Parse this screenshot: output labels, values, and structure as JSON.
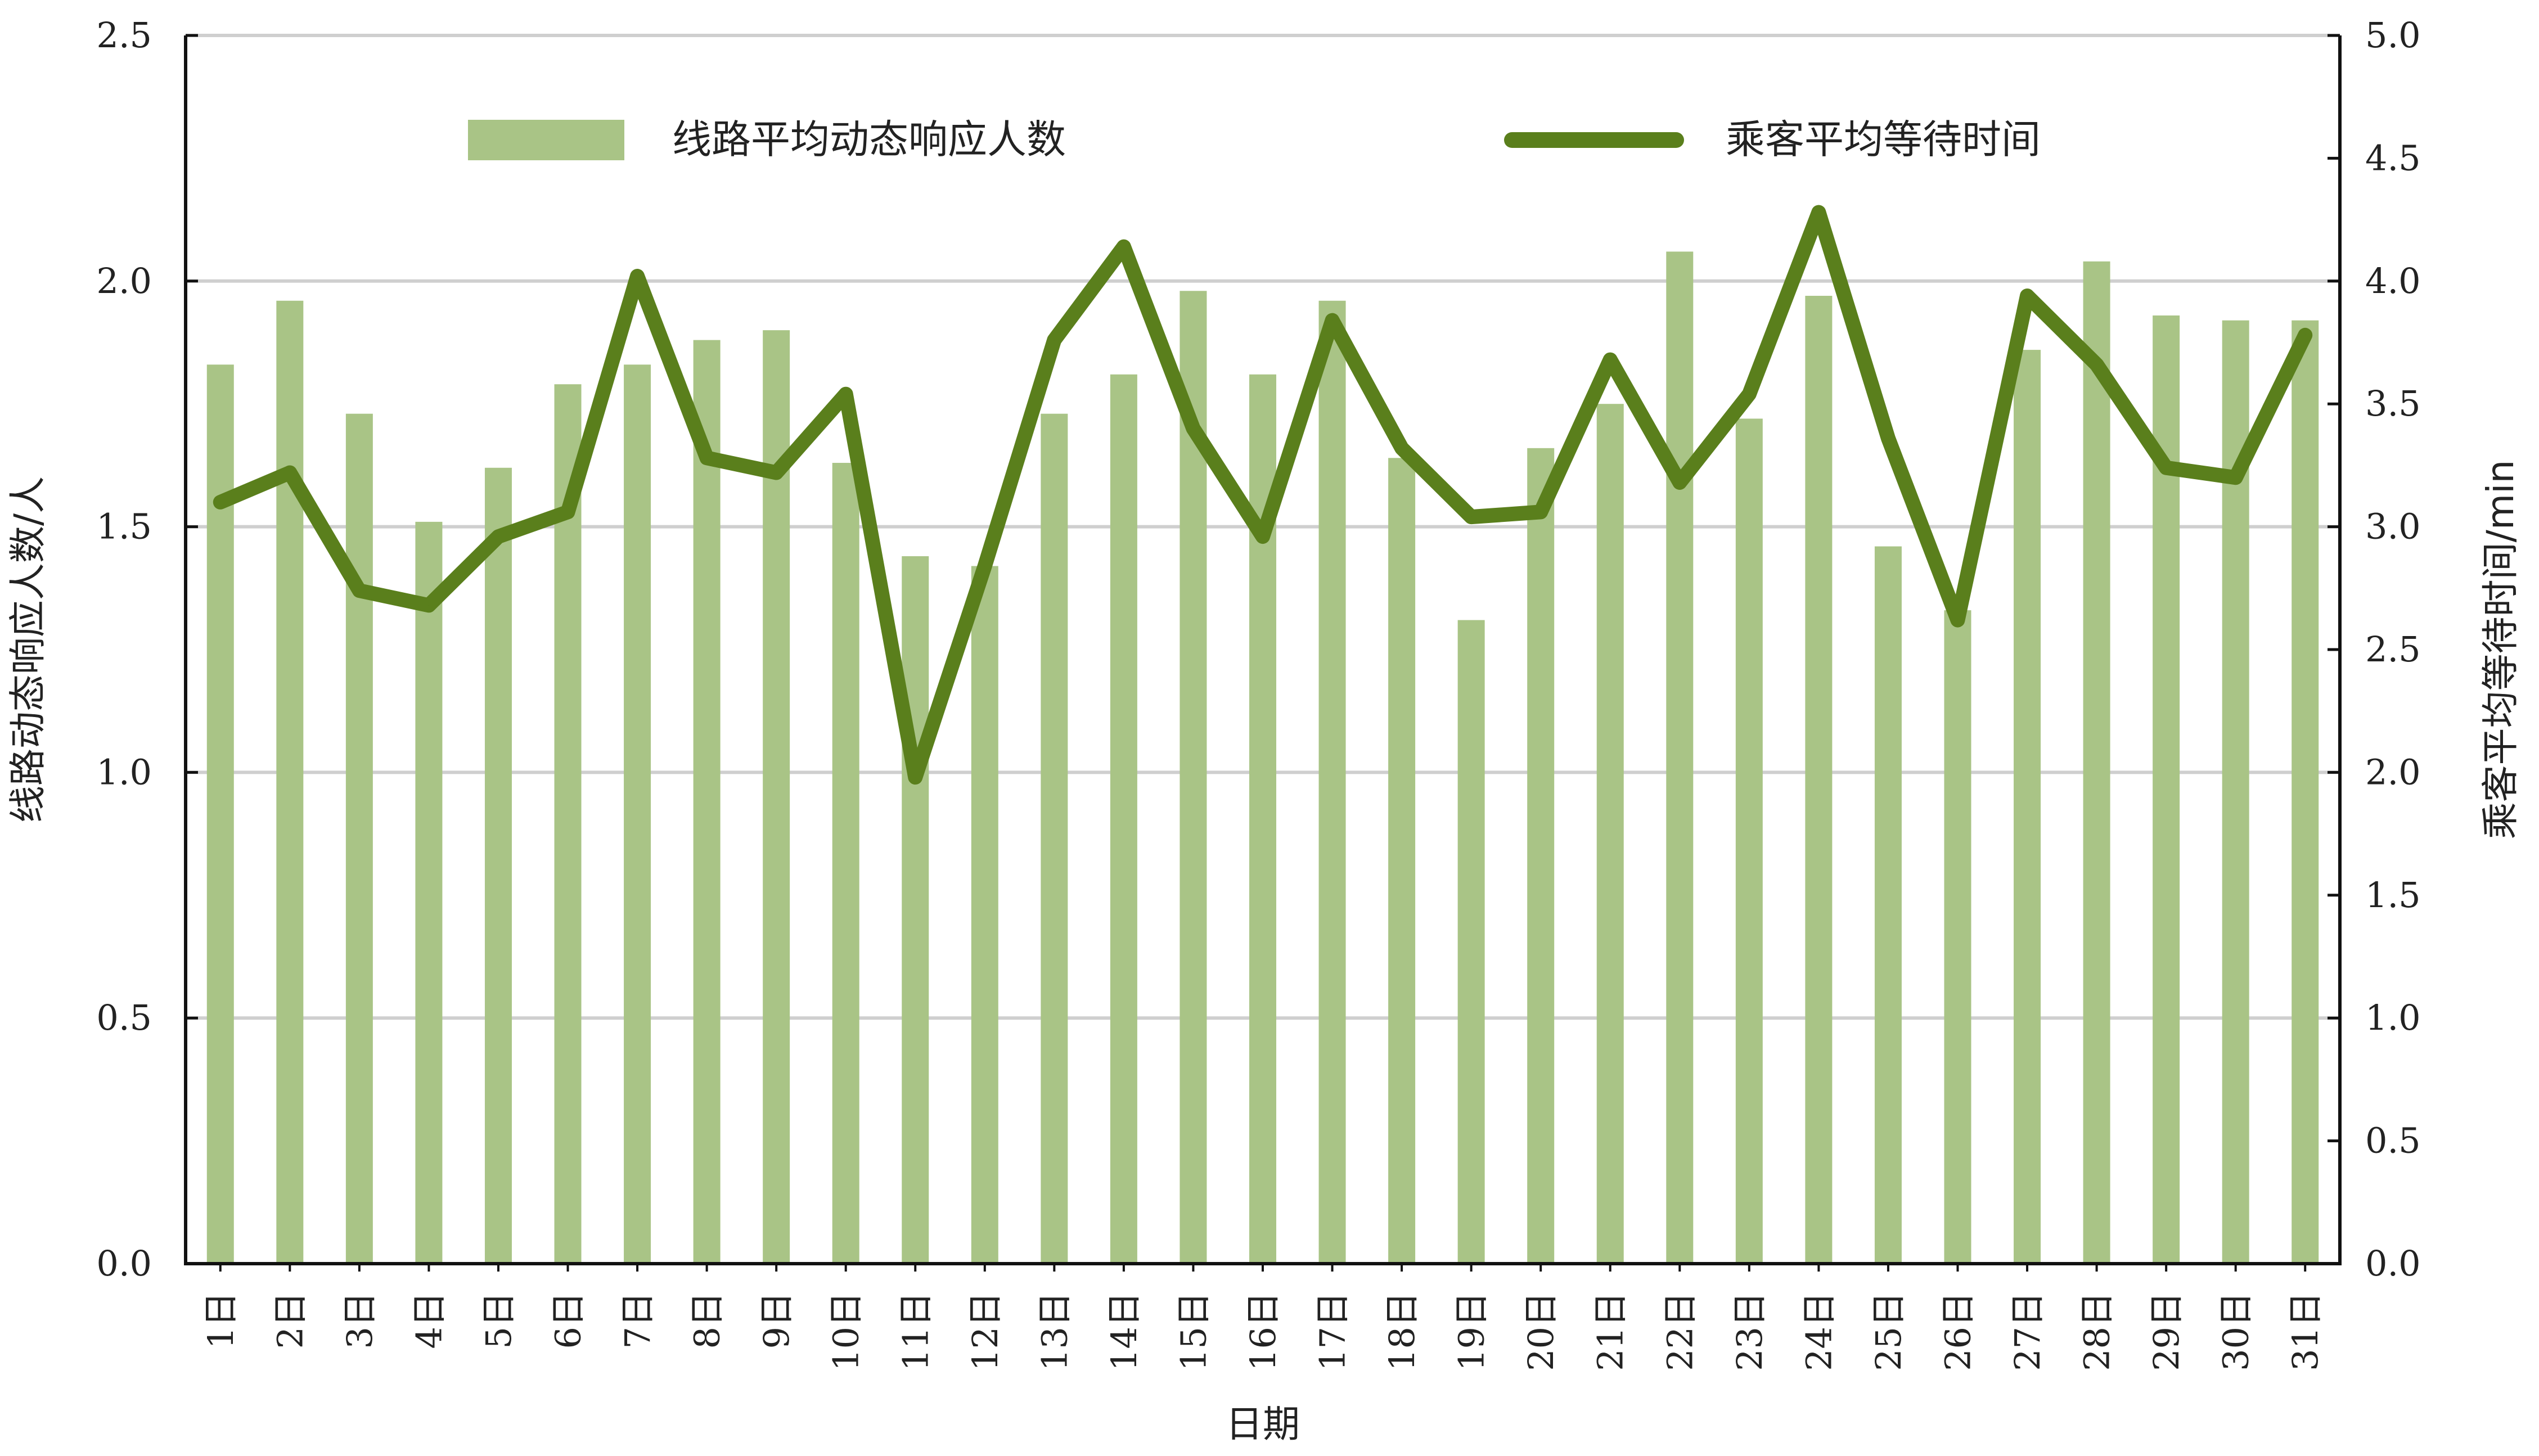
{
  "chart_data": {
    "type": "bar",
    "x": {
      "label": "日期",
      "categories": [
        "1日",
        "2日",
        "3日",
        "4日",
        "5日",
        "6日",
        "7日",
        "8日",
        "9日",
        "10日",
        "11日",
        "12日",
        "13日",
        "14日",
        "15日",
        "16日",
        "17日",
        "18日",
        "19日",
        "20日",
        "21日",
        "22日",
        "23日",
        "24日",
        "25日",
        "26日",
        "27日",
        "28日",
        "29日",
        "30日",
        "31日"
      ]
    },
    "y_left": {
      "label": "线路动态响应人数/人",
      "ylim": [
        0,
        2.5
      ],
      "ticks": [
        "0.0",
        "0.5",
        "1.0",
        "1.5",
        "2.0",
        "2.5"
      ]
    },
    "y_right": {
      "label": "乘客平均等待时间/min",
      "ylim": [
        0,
        5.0
      ],
      "ticks": [
        "0.0",
        "0.5",
        "1.0",
        "1.5",
        "2.0",
        "2.5",
        "3.0",
        "3.5",
        "4.0",
        "4.5",
        "5.0"
      ]
    },
    "series": [
      {
        "name": "线路平均动态响应人数",
        "type": "bar",
        "axis": "left",
        "color": "#a9c486",
        "values": [
          1.83,
          1.96,
          1.73,
          1.51,
          1.62,
          1.79,
          1.83,
          1.88,
          1.9,
          1.63,
          1.44,
          1.42,
          1.73,
          1.81,
          1.98,
          1.81,
          1.96,
          1.64,
          1.31,
          1.66,
          1.75,
          2.06,
          1.72,
          1.97,
          1.46,
          1.33,
          1.86,
          2.04,
          1.93,
          1.92,
          1.92
        ]
      },
      {
        "name": "乘客平均等待时间",
        "type": "line",
        "axis": "right",
        "color": "#5a7f1c",
        "values": [
          3.1,
          3.22,
          2.74,
          2.68,
          2.96,
          3.06,
          4.02,
          3.28,
          3.22,
          3.54,
          1.98,
          2.84,
          3.76,
          4.14,
          3.4,
          2.96,
          3.84,
          3.32,
          3.04,
          3.06,
          3.68,
          3.18,
          3.54,
          4.28,
          3.36,
          2.62,
          3.94,
          3.66,
          3.24,
          3.2,
          3.78
        ]
      }
    ],
    "grid": "horizontal",
    "legend": "top"
  }
}
